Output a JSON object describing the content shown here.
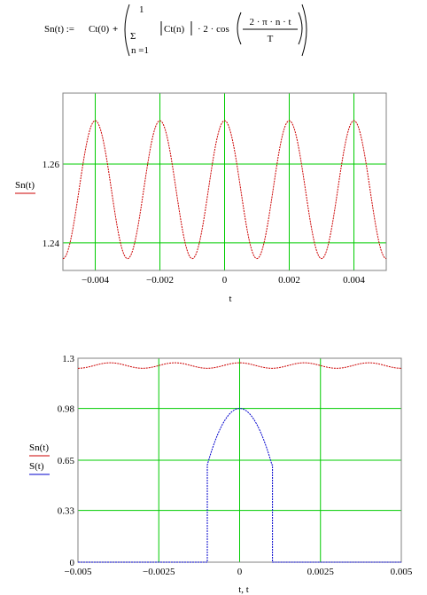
{
  "formula": {
    "lhs": "Sn(t) :=",
    "ct0": "Ct(0)",
    "plus": "+",
    "sum_upper": "1",
    "sum_lower": "n =1",
    "abs_term": "Ct(n)",
    "times2": "· 2 · cos",
    "frac_num": "2 · π · n · t",
    "frac_den": "T"
  },
  "colors": {
    "series_red": "#cc0000",
    "series_blue": "#0000cc",
    "grid": "#00cc00",
    "frame": "#808080"
  },
  "chart_data": [
    {
      "type": "line",
      "xlabel": "t",
      "ylabel_series": [
        "Sn(t)"
      ],
      "xlim": [
        -0.005,
        0.005
      ],
      "ylim": [
        1.233,
        1.278
      ],
      "xticks": [
        -0.004,
        -0.002,
        0,
        0.002,
        0.004
      ],
      "xtick_labels": [
        "−0.004",
        "−0.002",
        "0",
        "0.002",
        "0.004"
      ],
      "yticks": [
        1.24,
        1.26
      ],
      "ytick_labels": [
        "1.24",
        "1.26"
      ],
      "grid": true,
      "series": [
        {
          "label": "Sn(t)",
          "kind": "cosine",
          "mean": 1.2535,
          "amplitude": 0.0175,
          "period": 0.002,
          "color": "#cc0000"
        }
      ]
    },
    {
      "type": "line",
      "xlabel": "t, t",
      "ylabel_series": [
        "Sn(t)",
        "S(t)"
      ],
      "xlim": [
        -0.005,
        0.005
      ],
      "ylim": [
        0,
        1.3
      ],
      "xticks": [
        -0.005,
        -0.0025,
        0,
        0.0025,
        0.005
      ],
      "xtick_labels": [
        "−0.005",
        "−0.0025",
        "0",
        "0.0025",
        "0.005"
      ],
      "yticks": [
        0,
        0.33,
        0.65,
        0.98,
        1.3
      ],
      "ytick_labels": [
        "0",
        "0.33",
        "0.65",
        "0.98",
        "1.3"
      ],
      "grid": true,
      "series": [
        {
          "label": "Sn(t)",
          "kind": "cosine",
          "mean": 1.2535,
          "amplitude": 0.0175,
          "period": 0.002,
          "color": "#cc0000"
        },
        {
          "label": "S(t)",
          "kind": "pulse",
          "pulse_halfwidth": 0.001,
          "peak": 0.98,
          "edge_value": 0.62,
          "color": "#0000cc"
        }
      ]
    }
  ]
}
